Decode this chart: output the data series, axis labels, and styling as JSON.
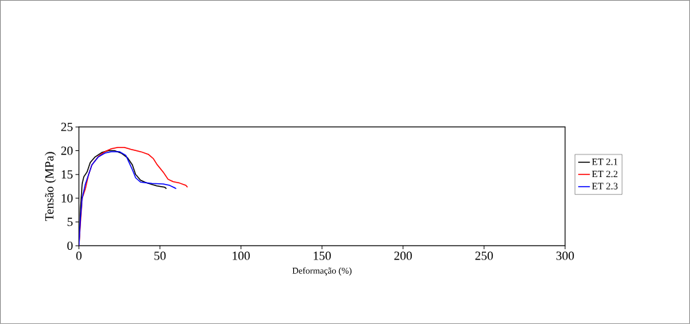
{
  "chart_data": {
    "type": "line",
    "xlabel": "Deformação (%)",
    "ylabel": "Tensão (MPa)",
    "xlim": [
      0,
      300
    ],
    "ylim": [
      0,
      25
    ],
    "xticks": [
      0,
      50,
      100,
      150,
      200,
      250,
      300
    ],
    "yticks": [
      0,
      5,
      10,
      15,
      20,
      25
    ],
    "grid": false,
    "legend": "right",
    "marker": "none",
    "line_style": "solid",
    "series": [
      {
        "name": "ET 2.1",
        "color": "#000000",
        "x": [
          0,
          1,
          2,
          3,
          5,
          7,
          10,
          14,
          18,
          22,
          26,
          30,
          33,
          35,
          38,
          42,
          48,
          53,
          54
        ],
        "values": [
          0,
          8,
          13,
          14.5,
          15.5,
          17.5,
          18.7,
          19.6,
          20,
          20,
          19.5,
          18.5,
          17,
          15,
          13.8,
          13.2,
          12.6,
          12.3,
          12
        ]
      },
      {
        "name": "ET 2.2",
        "color": "#ff0000",
        "x": [
          0,
          1,
          2,
          4,
          6,
          8,
          12,
          16,
          20,
          24,
          28,
          32,
          38,
          43,
          46,
          48,
          52,
          55,
          58,
          62,
          66,
          67
        ],
        "values": [
          0,
          5,
          10,
          12,
          15,
          17,
          18.8,
          19.8,
          20.4,
          20.7,
          20.7,
          20.3,
          19.8,
          19.2,
          18.3,
          17.2,
          15.5,
          14,
          13.5,
          13.2,
          12.7,
          12.3
        ]
      },
      {
        "name": "ET 2.3",
        "color": "#0000ff",
        "x": [
          0,
          1,
          2,
          4,
          6,
          8,
          12,
          16,
          20,
          25,
          29,
          31,
          33,
          35,
          38,
          45,
          52,
          56,
          59,
          60
        ],
        "values": [
          0,
          6,
          10,
          13,
          15,
          17,
          18.7,
          19.5,
          19.8,
          19.8,
          19,
          17.5,
          16,
          14.3,
          13.4,
          13.1,
          13,
          12.7,
          12.2,
          12
        ]
      }
    ]
  }
}
